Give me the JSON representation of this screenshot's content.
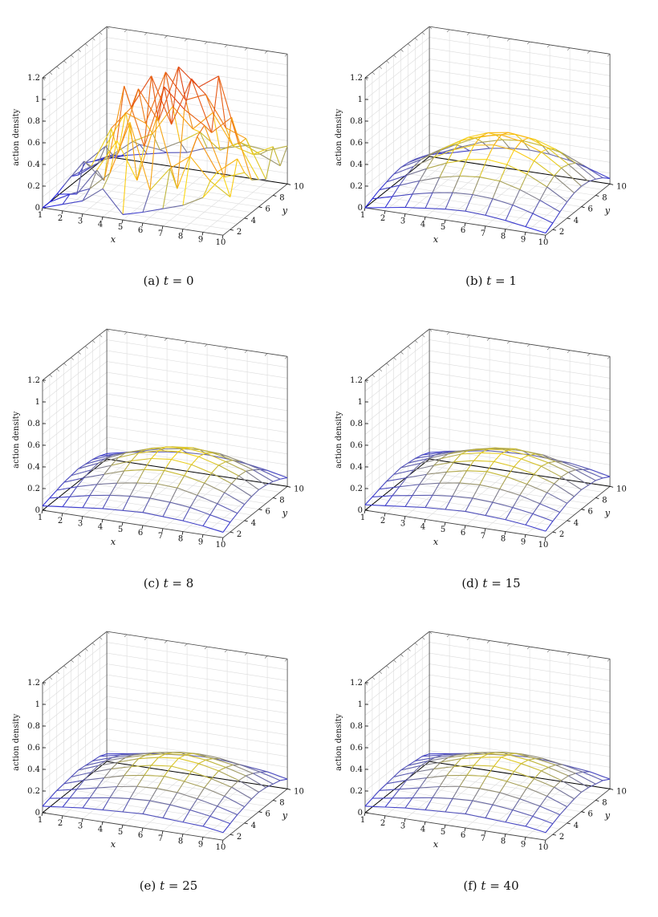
{
  "chart_data": [
    {
      "type": "surface",
      "caption_letter": "(a)",
      "t_label": "t",
      "t_value": "0",
      "zlabel": "action density",
      "xlabel": "x",
      "ylabel": "y",
      "x_ticks": [
        "1",
        "2",
        "3",
        "4",
        "5",
        "6",
        "7",
        "8",
        "9",
        "10"
      ],
      "y_ticks": [
        "2",
        "4",
        "6",
        "8",
        "10"
      ],
      "z_ticks": [
        "0",
        "0.2",
        "0.4",
        "0.6",
        "0.8",
        "1",
        "1.2"
      ],
      "zlim": [
        0,
        1.2
      ],
      "z": [
        [
          0.0,
          0.06,
          0.12,
          0.26,
          0.05,
          0.1,
          0.16,
          0.22,
          0.32,
          0.55
        ],
        [
          0.0,
          0.1,
          0.18,
          0.35,
          0.85,
          0.25,
          0.48,
          0.62,
          0.42,
          0.3
        ],
        [
          0.02,
          0.05,
          0.3,
          0.6,
          0.26,
          0.88,
          0.24,
          0.75,
          0.45,
          0.6
        ],
        [
          0.05,
          0.3,
          0.15,
          1.05,
          0.52,
          1.1,
          0.92,
          0.8,
          0.35,
          0.42
        ],
        [
          0.08,
          0.2,
          0.58,
          0.8,
          1.12,
          0.7,
          1.15,
          0.68,
          0.85,
          0.3
        ],
        [
          0.04,
          0.18,
          0.3,
          0.92,
          0.65,
          1.18,
          1.02,
          1.15,
          0.55,
          0.25
        ],
        [
          0.1,
          0.28,
          0.62,
          0.55,
          1.05,
          0.82,
          0.9,
          0.62,
          0.55,
          0.2
        ],
        [
          0.06,
          0.15,
          0.3,
          0.4,
          0.68,
          0.5,
          0.68,
          0.4,
          0.35,
          0.45
        ],
        [
          0.02,
          0.08,
          0.22,
          0.2,
          0.3,
          0.42,
          0.28,
          0.38,
          0.3,
          0.22
        ],
        [
          0.0,
          0.04,
          0.08,
          0.12,
          0.15,
          0.22,
          0.25,
          0.3,
          0.28,
          0.35
        ]
      ]
    },
    {
      "type": "surface",
      "caption_letter": "(b)",
      "t_label": "t",
      "t_value": "1",
      "zlabel": "action density",
      "xlabel": "x",
      "ylabel": "y",
      "x_ticks": [
        "1",
        "2",
        "3",
        "4",
        "5",
        "6",
        "7",
        "8",
        "9",
        "10"
      ],
      "y_ticks": [
        "2",
        "4",
        "6",
        "8",
        "10"
      ],
      "z_ticks": [
        "0",
        "0.2",
        "0.4",
        "0.6",
        "0.8",
        "1",
        "1.2"
      ],
      "zlim": [
        0,
        1.2
      ],
      "z": [
        [
          0.0,
          0.03,
          0.06,
          0.08,
          0.1,
          0.11,
          0.1,
          0.08,
          0.05,
          0.02
        ],
        [
          0.03,
          0.08,
          0.13,
          0.17,
          0.2,
          0.21,
          0.2,
          0.17,
          0.12,
          0.06
        ],
        [
          0.06,
          0.13,
          0.2,
          0.26,
          0.3,
          0.32,
          0.31,
          0.26,
          0.19,
          0.11
        ],
        [
          0.08,
          0.17,
          0.26,
          0.34,
          0.4,
          0.43,
          0.41,
          0.35,
          0.26,
          0.15
        ],
        [
          0.1,
          0.2,
          0.31,
          0.41,
          0.48,
          0.51,
          0.49,
          0.42,
          0.31,
          0.18
        ],
        [
          0.11,
          0.21,
          0.33,
          0.44,
          0.51,
          0.55,
          0.52,
          0.45,
          0.33,
          0.19
        ],
        [
          0.1,
          0.2,
          0.31,
          0.42,
          0.49,
          0.52,
          0.5,
          0.43,
          0.31,
          0.18
        ],
        [
          0.08,
          0.17,
          0.27,
          0.36,
          0.42,
          0.45,
          0.43,
          0.37,
          0.27,
          0.15
        ],
        [
          0.05,
          0.12,
          0.2,
          0.27,
          0.32,
          0.34,
          0.32,
          0.28,
          0.2,
          0.11
        ],
        [
          0.02,
          0.06,
          0.11,
          0.16,
          0.19,
          0.2,
          0.19,
          0.16,
          0.11,
          0.05
        ]
      ]
    },
    {
      "type": "surface",
      "caption_letter": "(c)",
      "t_label": "t",
      "t_value": "8",
      "zlabel": "action density",
      "xlabel": "x",
      "ylabel": "y",
      "x_ticks": [
        "1",
        "2",
        "3",
        "4",
        "5",
        "6",
        "7",
        "8",
        "9",
        "10"
      ],
      "y_ticks": [
        "2",
        "4",
        "6",
        "8",
        "10"
      ],
      "z_ticks": [
        "0",
        "0.2",
        "0.4",
        "0.6",
        "0.8",
        "1",
        "1.2"
      ],
      "zlim": [
        0,
        1.2
      ],
      "z": [
        [
          0.04,
          0.06,
          0.08,
          0.1,
          0.11,
          0.12,
          0.11,
          0.1,
          0.08,
          0.05
        ],
        [
          0.06,
          0.1,
          0.14,
          0.17,
          0.19,
          0.2,
          0.19,
          0.17,
          0.13,
          0.09
        ],
        [
          0.08,
          0.14,
          0.19,
          0.23,
          0.26,
          0.28,
          0.27,
          0.23,
          0.18,
          0.12
        ],
        [
          0.1,
          0.17,
          0.23,
          0.29,
          0.33,
          0.35,
          0.33,
          0.29,
          0.23,
          0.15
        ],
        [
          0.11,
          0.19,
          0.26,
          0.33,
          0.38,
          0.4,
          0.38,
          0.33,
          0.26,
          0.17
        ],
        [
          0.12,
          0.2,
          0.28,
          0.35,
          0.4,
          0.42,
          0.4,
          0.35,
          0.28,
          0.18
        ],
        [
          0.11,
          0.19,
          0.27,
          0.33,
          0.38,
          0.4,
          0.38,
          0.33,
          0.27,
          0.17
        ],
        [
          0.1,
          0.17,
          0.23,
          0.29,
          0.33,
          0.35,
          0.33,
          0.29,
          0.23,
          0.15
        ],
        [
          0.08,
          0.13,
          0.18,
          0.23,
          0.26,
          0.28,
          0.27,
          0.23,
          0.18,
          0.12
        ],
        [
          0.05,
          0.09,
          0.12,
          0.15,
          0.17,
          0.18,
          0.17,
          0.15,
          0.12,
          0.08
        ]
      ]
    },
    {
      "type": "surface",
      "caption_letter": "(d)",
      "t_label": "t",
      "t_value": "15",
      "zlabel": "action density",
      "xlabel": "x",
      "ylabel": "y",
      "x_ticks": [
        "1",
        "2",
        "3",
        "4",
        "5",
        "6",
        "7",
        "8",
        "9",
        "10"
      ],
      "y_ticks": [
        "2",
        "4",
        "6",
        "8",
        "10"
      ],
      "z_ticks": [
        "0",
        "0.2",
        "0.4",
        "0.6",
        "0.8",
        "1",
        "1.2"
      ],
      "zlim": [
        0,
        1.2
      ],
      "z": [
        [
          0.05,
          0.07,
          0.09,
          0.11,
          0.12,
          0.13,
          0.12,
          0.11,
          0.09,
          0.06
        ],
        [
          0.07,
          0.11,
          0.14,
          0.17,
          0.19,
          0.2,
          0.19,
          0.17,
          0.14,
          0.1
        ],
        [
          0.09,
          0.14,
          0.19,
          0.23,
          0.26,
          0.27,
          0.26,
          0.23,
          0.18,
          0.13
        ],
        [
          0.11,
          0.17,
          0.23,
          0.28,
          0.32,
          0.34,
          0.32,
          0.28,
          0.23,
          0.16
        ],
        [
          0.12,
          0.19,
          0.26,
          0.32,
          0.36,
          0.38,
          0.36,
          0.32,
          0.26,
          0.17
        ],
        [
          0.13,
          0.2,
          0.27,
          0.34,
          0.38,
          0.4,
          0.38,
          0.34,
          0.27,
          0.18
        ],
        [
          0.12,
          0.19,
          0.26,
          0.32,
          0.36,
          0.38,
          0.36,
          0.32,
          0.26,
          0.17
        ],
        [
          0.11,
          0.17,
          0.23,
          0.28,
          0.32,
          0.34,
          0.32,
          0.28,
          0.23,
          0.16
        ],
        [
          0.09,
          0.14,
          0.18,
          0.23,
          0.26,
          0.27,
          0.26,
          0.22,
          0.18,
          0.13
        ],
        [
          0.06,
          0.1,
          0.13,
          0.16,
          0.17,
          0.18,
          0.17,
          0.16,
          0.13,
          0.09
        ]
      ]
    },
    {
      "type": "surface",
      "caption_letter": "(e)",
      "t_label": "t",
      "t_value": "25",
      "zlabel": "action density",
      "xlabel": "x",
      "ylabel": "y",
      "x_ticks": [
        "1",
        "2",
        "3",
        "4",
        "5",
        "6",
        "7",
        "8",
        "9",
        "10"
      ],
      "y_ticks": [
        "2",
        "4",
        "6",
        "8",
        "10"
      ],
      "z_ticks": [
        "0",
        "0.2",
        "0.4",
        "0.6",
        "0.8",
        "1",
        "1.2"
      ],
      "zlim": [
        0,
        1.2
      ],
      "z": [
        [
          0.06,
          0.08,
          0.1,
          0.11,
          0.12,
          0.13,
          0.12,
          0.11,
          0.1,
          0.07
        ],
        [
          0.08,
          0.11,
          0.14,
          0.17,
          0.19,
          0.2,
          0.19,
          0.17,
          0.14,
          0.1
        ],
        [
          0.1,
          0.14,
          0.18,
          0.22,
          0.25,
          0.26,
          0.25,
          0.22,
          0.18,
          0.13
        ],
        [
          0.11,
          0.17,
          0.22,
          0.27,
          0.3,
          0.32,
          0.3,
          0.27,
          0.22,
          0.15
        ],
        [
          0.12,
          0.19,
          0.25,
          0.3,
          0.34,
          0.36,
          0.34,
          0.3,
          0.25,
          0.17
        ],
        [
          0.13,
          0.2,
          0.26,
          0.32,
          0.36,
          0.38,
          0.36,
          0.32,
          0.26,
          0.18
        ],
        [
          0.12,
          0.19,
          0.25,
          0.3,
          0.34,
          0.36,
          0.34,
          0.3,
          0.25,
          0.17
        ],
        [
          0.11,
          0.17,
          0.22,
          0.27,
          0.3,
          0.32,
          0.3,
          0.27,
          0.22,
          0.15
        ],
        [
          0.1,
          0.14,
          0.18,
          0.22,
          0.25,
          0.26,
          0.25,
          0.22,
          0.18,
          0.13
        ],
        [
          0.07,
          0.1,
          0.13,
          0.15,
          0.17,
          0.18,
          0.17,
          0.15,
          0.13,
          0.09
        ]
      ]
    },
    {
      "type": "surface",
      "caption_letter": "(f)",
      "t_label": "t",
      "t_value": "40",
      "zlabel": "action density",
      "xlabel": "x",
      "ylabel": "y",
      "x_ticks": [
        "1",
        "2",
        "3",
        "4",
        "5",
        "6",
        "7",
        "8",
        "9",
        "10"
      ],
      "y_ticks": [
        "2",
        "4",
        "6",
        "8",
        "10"
      ],
      "z_ticks": [
        "0",
        "0.2",
        "0.4",
        "0.6",
        "0.8",
        "1",
        "1.2"
      ],
      "zlim": [
        0,
        1.2
      ],
      "z": [
        [
          0.06,
          0.08,
          0.1,
          0.11,
          0.12,
          0.13,
          0.12,
          0.11,
          0.1,
          0.07
        ],
        [
          0.08,
          0.11,
          0.14,
          0.17,
          0.19,
          0.2,
          0.19,
          0.17,
          0.14,
          0.1
        ],
        [
          0.1,
          0.14,
          0.18,
          0.22,
          0.25,
          0.26,
          0.25,
          0.22,
          0.18,
          0.13
        ],
        [
          0.11,
          0.17,
          0.22,
          0.27,
          0.3,
          0.32,
          0.3,
          0.27,
          0.22,
          0.15
        ],
        [
          0.12,
          0.19,
          0.25,
          0.3,
          0.34,
          0.36,
          0.34,
          0.3,
          0.25,
          0.17
        ],
        [
          0.13,
          0.2,
          0.26,
          0.32,
          0.36,
          0.39,
          0.36,
          0.32,
          0.26,
          0.18
        ],
        [
          0.12,
          0.19,
          0.25,
          0.3,
          0.34,
          0.36,
          0.34,
          0.3,
          0.25,
          0.17
        ],
        [
          0.11,
          0.17,
          0.22,
          0.27,
          0.3,
          0.32,
          0.3,
          0.27,
          0.22,
          0.15
        ],
        [
          0.1,
          0.14,
          0.18,
          0.22,
          0.25,
          0.26,
          0.25,
          0.22,
          0.18,
          0.13
        ],
        [
          0.07,
          0.1,
          0.13,
          0.15,
          0.17,
          0.18,
          0.17,
          0.15,
          0.13,
          0.09
        ]
      ]
    }
  ]
}
